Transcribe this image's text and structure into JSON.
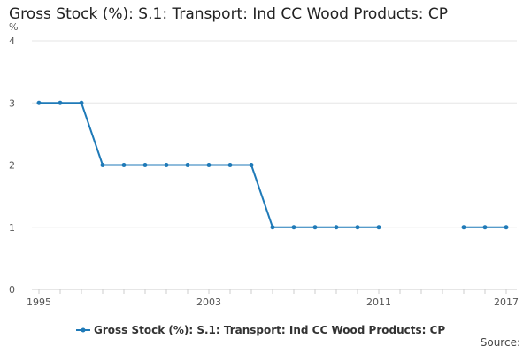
{
  "chart_data": {
    "type": "line",
    "title": "Gross Stock (%): S.1: Transport: Ind CC Wood Products: CP",
    "ylabel": "%",
    "xlabel": "",
    "ylim": [
      0,
      4
    ],
    "xlim": [
      1995,
      2017
    ],
    "yticks": [
      "0",
      "1",
      "2",
      "3",
      "4"
    ],
    "xticks": [
      "1995",
      "2003",
      "2011",
      "2017"
    ],
    "grid": true,
    "legend_position": "bottom",
    "color": "#1f7ab8",
    "series": [
      {
        "name": "Gross Stock (%): S.1: Transport: Ind CC Wood Products: CP",
        "x": [
          1995,
          1996,
          1997,
          1998,
          1999,
          2000,
          2001,
          2002,
          2003,
          2004,
          2005,
          2006,
          2007,
          2008,
          2009,
          2010,
          2011,
          2015,
          2016,
          2017
        ],
        "values": [
          3,
          3,
          3,
          2,
          2,
          2,
          2,
          2,
          2,
          2,
          2,
          1,
          1,
          1,
          1,
          1,
          1,
          1,
          1,
          1
        ]
      }
    ],
    "source_label": "Source:"
  }
}
